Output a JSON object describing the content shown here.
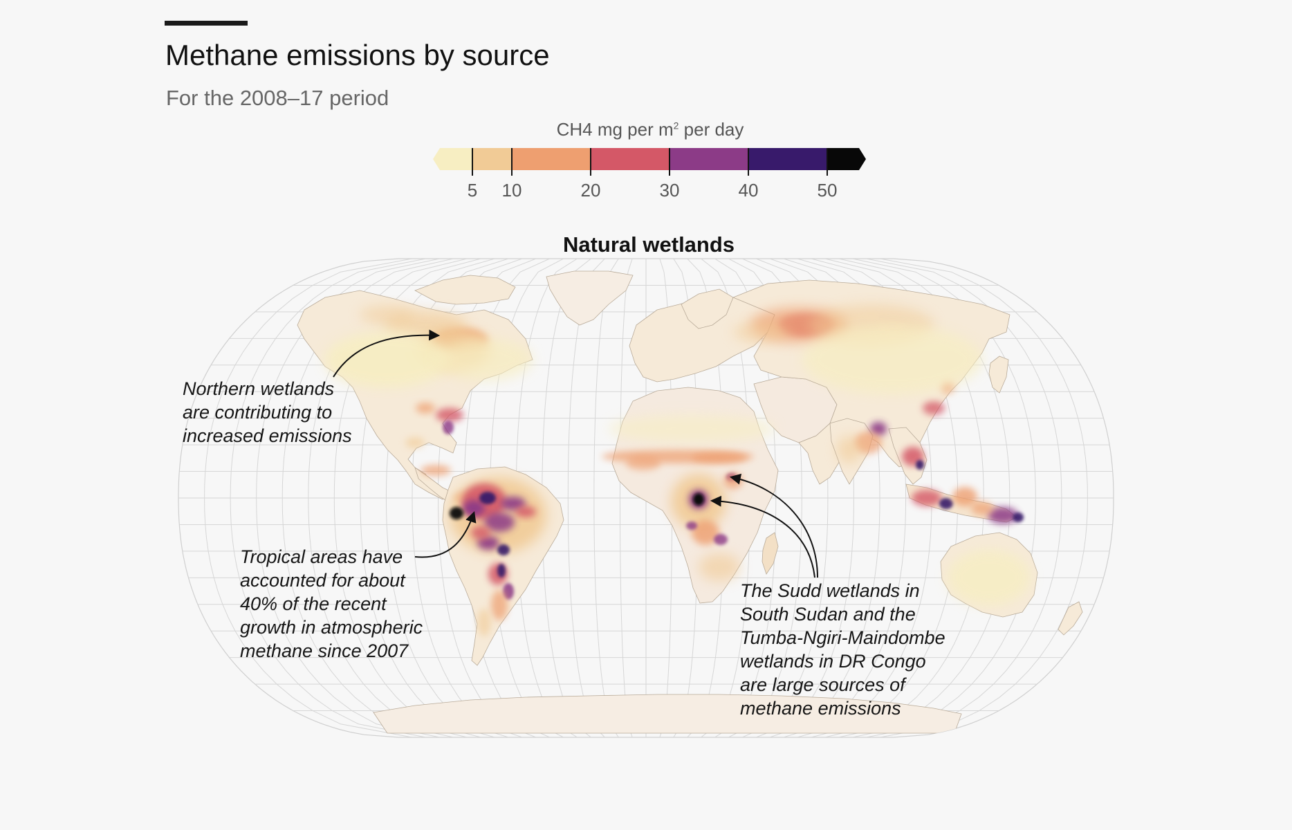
{
  "header": {
    "title": "Methane emissions by source",
    "subtitle": "For the 2008–17 period"
  },
  "legend": {
    "title_prefix": "CH4 mg per m",
    "title_superscript": "2",
    "title_suffix": " per day",
    "breaks": [
      5,
      10,
      20,
      30,
      40,
      50
    ],
    "tick_labels": [
      "5",
      "10",
      "20",
      "30",
      "40",
      "50"
    ],
    "colors": [
      "#f7eec2",
      "#f1cb96",
      "#ee9f70",
      "#d45867",
      "#8c3b87",
      "#381a6b",
      "#080808"
    ]
  },
  "map": {
    "title": "Natural wetlands",
    "ocean_color": "#f7f7f7",
    "land_color": "#f6ede1",
    "graticule_color": "#d6d6d6"
  },
  "annotations": {
    "north": {
      "lines": [
        "Northern wetlands",
        "are contributing to",
        "increased emissions"
      ]
    },
    "tropic": {
      "lines": [
        "Tropical areas have",
        "accounted for about",
        "40% of the recent",
        "growth in atmospheric",
        "methane since 2007"
      ]
    },
    "sudd": {
      "lines": [
        "The Sudd wetlands in",
        "South Sudan and the",
        "Tumba-Ngiri-Maindombe",
        "wetlands in DR Congo",
        "are large sources of",
        "methane emissions"
      ]
    }
  }
}
